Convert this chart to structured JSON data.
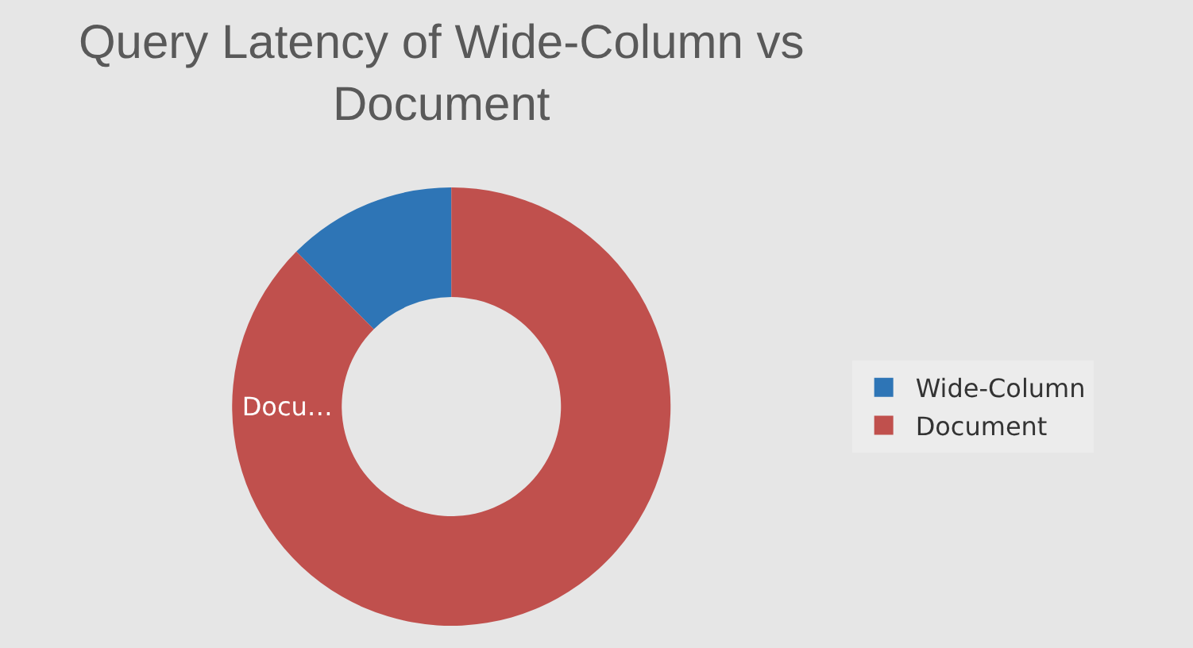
{
  "chart_data": {
    "type": "donut",
    "title": "Query Latency of Wide-Column vs Document",
    "categories": [
      "Wide-Column",
      "Document"
    ],
    "values": [
      12.5,
      87.5
    ],
    "colors": [
      "#2e75b6",
      "#c0504d"
    ],
    "value_labels": [
      null,
      "Docu…"
    ],
    "legend": "right"
  }
}
